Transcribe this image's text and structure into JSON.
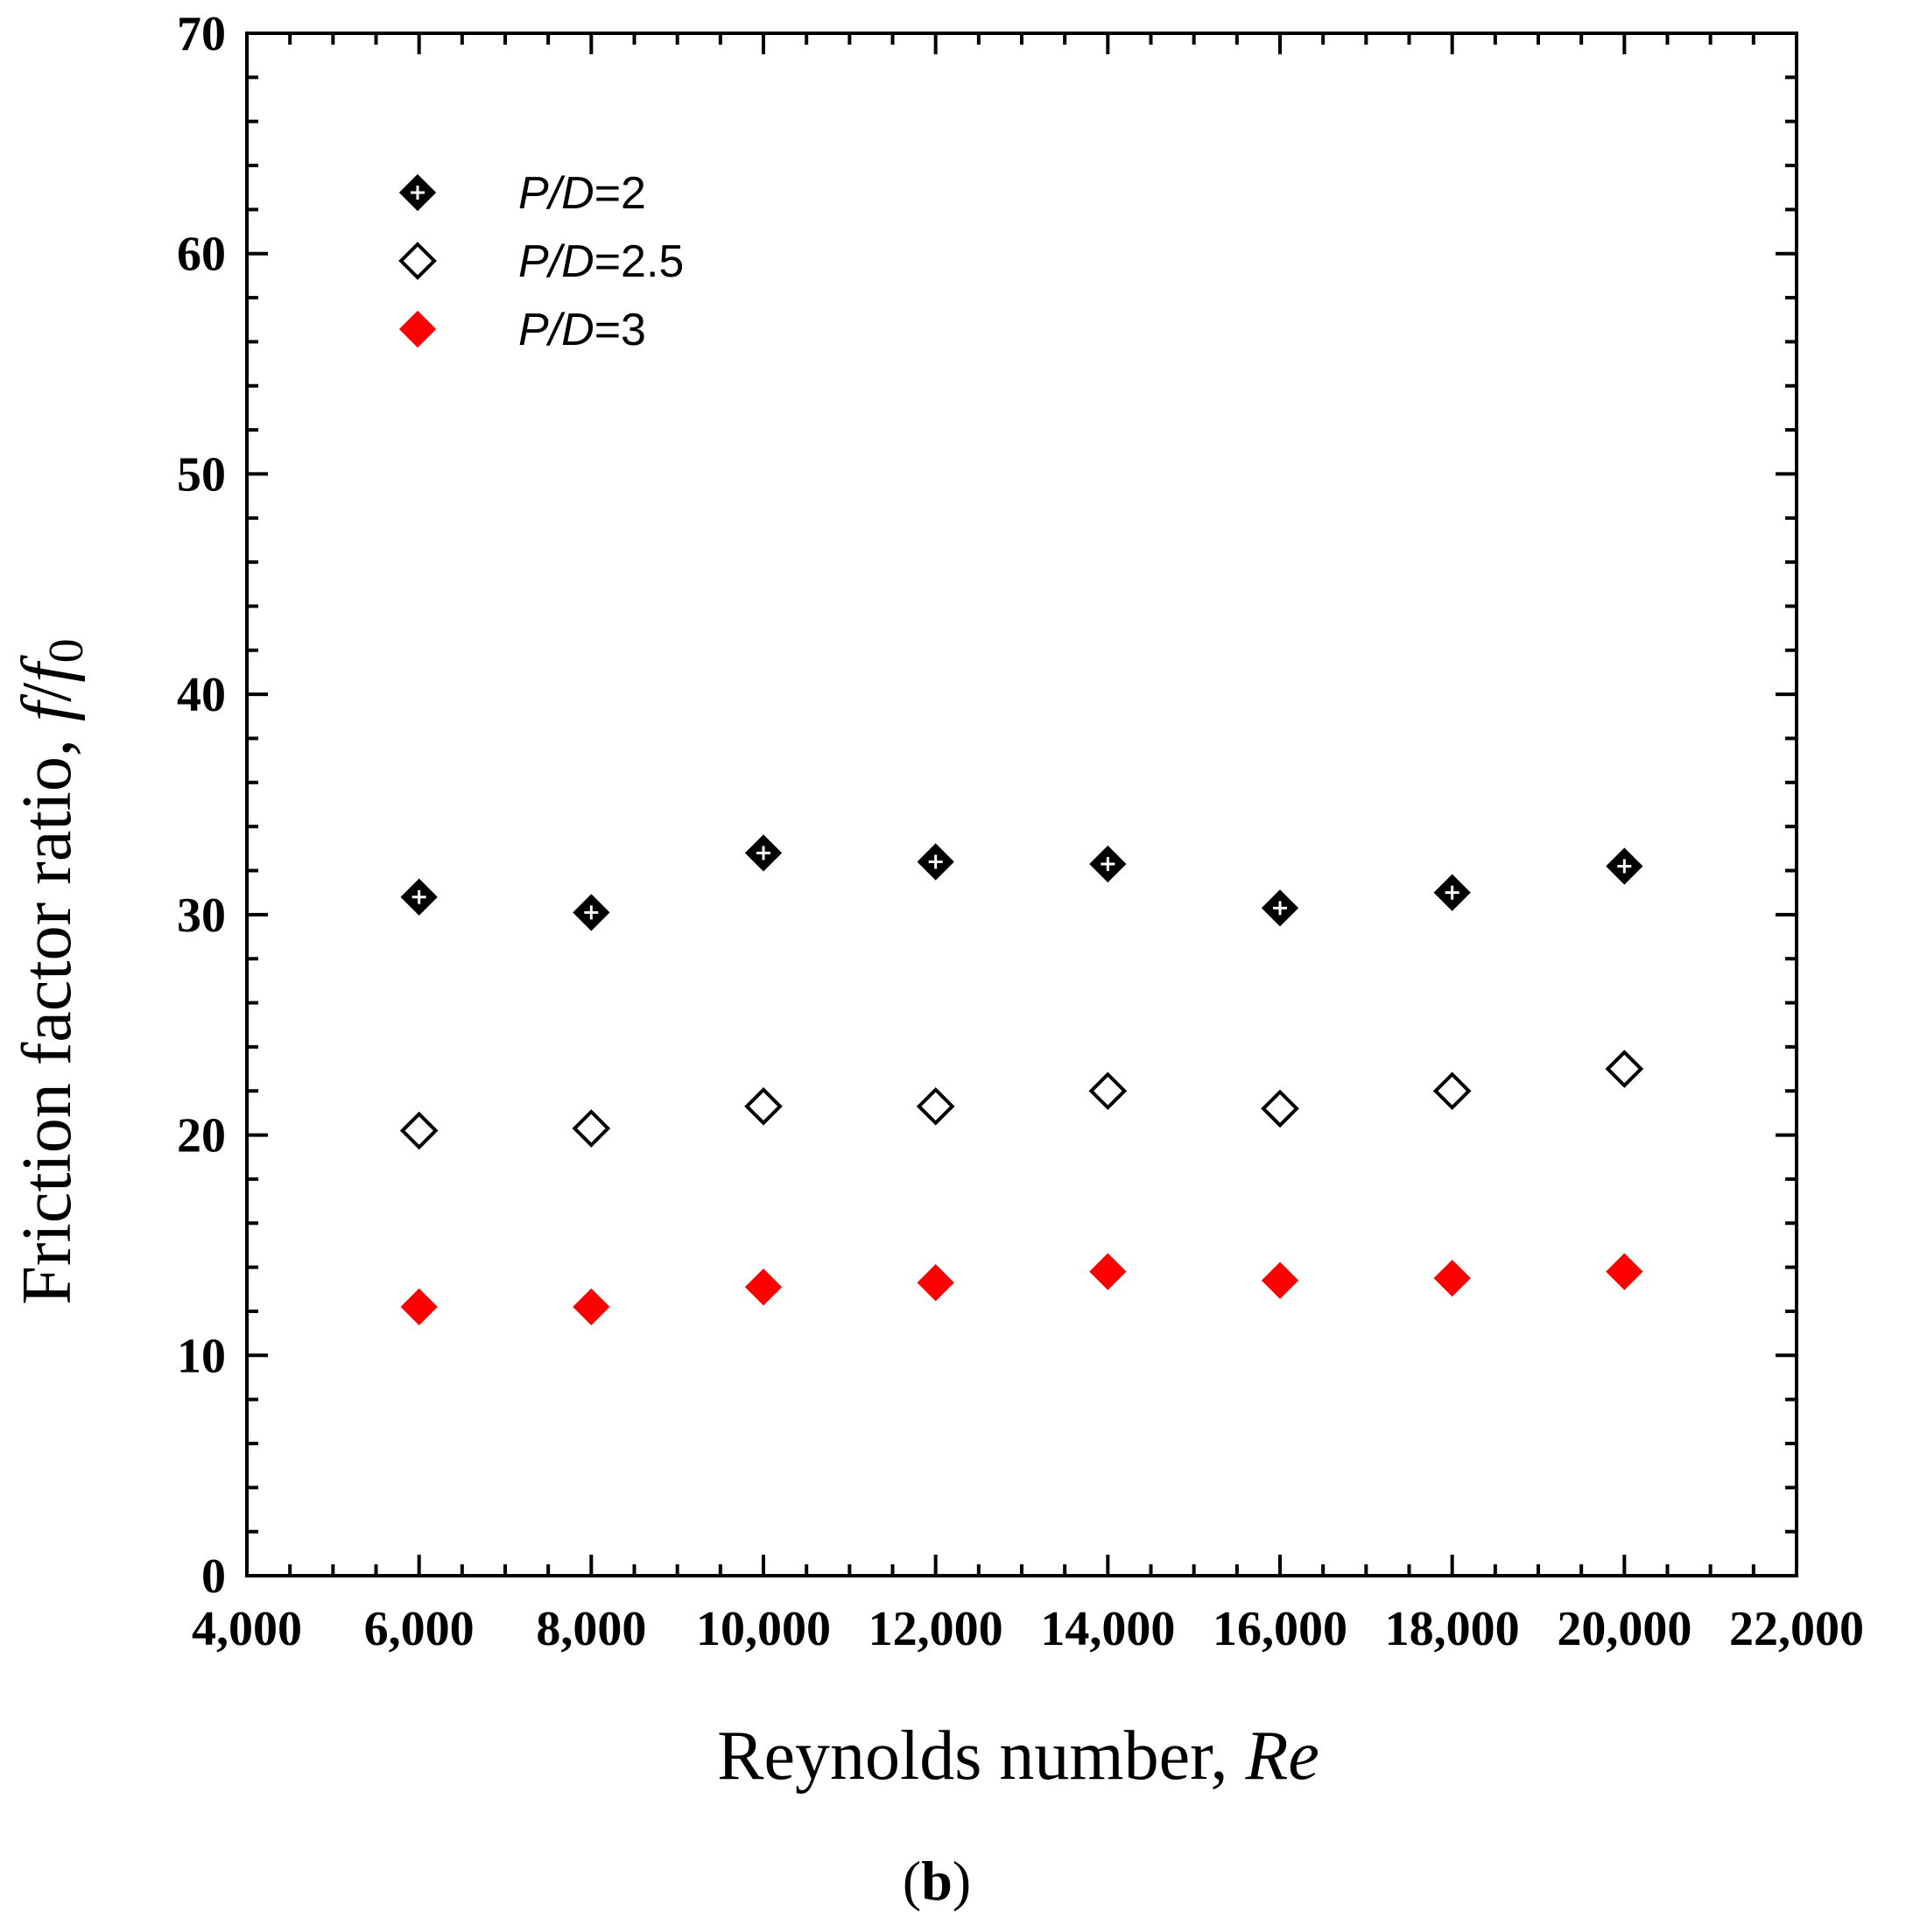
{
  "chart_data": {
    "type": "scatter",
    "title": "",
    "xlabel": {
      "text": "Reynolds number, ",
      "italic": "Re"
    },
    "ylabel": {
      "text": "Friction factor ratio, ",
      "f1": "f",
      "sep": "/",
      "f2": "f",
      "sub": "0"
    },
    "panel_label": {
      "open": "(",
      "letter": "b",
      "close": ")"
    },
    "xlim": [
      4000,
      22000
    ],
    "ylim": [
      0,
      70
    ],
    "x_ticks": [
      4000,
      6000,
      8000,
      10000,
      12000,
      14000,
      16000,
      18000,
      20000,
      22000
    ],
    "x_tick_labels": [
      "4,000",
      "6,000",
      "8,000",
      "10,000",
      "12,000",
      "14,000",
      "16,000",
      "18,000",
      "20,000",
      "22,000"
    ],
    "y_ticks": [
      0,
      10,
      20,
      30,
      40,
      50,
      60,
      70
    ],
    "y_tick_labels": [
      "0",
      "10",
      "20",
      "30",
      "40",
      "50",
      "60",
      "70"
    ],
    "grid": false,
    "legend_position": "top-left",
    "series": [
      {
        "name": "P/D=2",
        "label_italic": "P/D",
        "label_value": "=2",
        "marker": "diamond-crossed",
        "color": "#000000",
        "x": [
          6000,
          8000,
          10000,
          12000,
          14000,
          16000,
          18000,
          20000
        ],
        "values": [
          30.8,
          30.1,
          32.8,
          32.4,
          32.3,
          30.3,
          31.0,
          32.2
        ]
      },
      {
        "name": "P/D=2.5",
        "label_italic": "P/D",
        "label_value": "=2.5",
        "marker": "diamond-open",
        "color": "#000000",
        "x": [
          6000,
          8000,
          10000,
          12000,
          14000,
          16000,
          18000,
          20000
        ],
        "values": [
          20.2,
          20.3,
          21.3,
          21.3,
          22.0,
          21.2,
          22.0,
          23.0
        ]
      },
      {
        "name": "P/D=3",
        "label_italic": "P/D",
        "label_value": "=3",
        "marker": "diamond-filled",
        "color": "#ff0000",
        "x": [
          6000,
          8000,
          10000,
          12000,
          14000,
          16000,
          18000,
          20000
        ],
        "values": [
          12.2,
          12.2,
          13.1,
          13.3,
          13.8,
          13.4,
          13.5,
          13.8
        ]
      }
    ]
  }
}
